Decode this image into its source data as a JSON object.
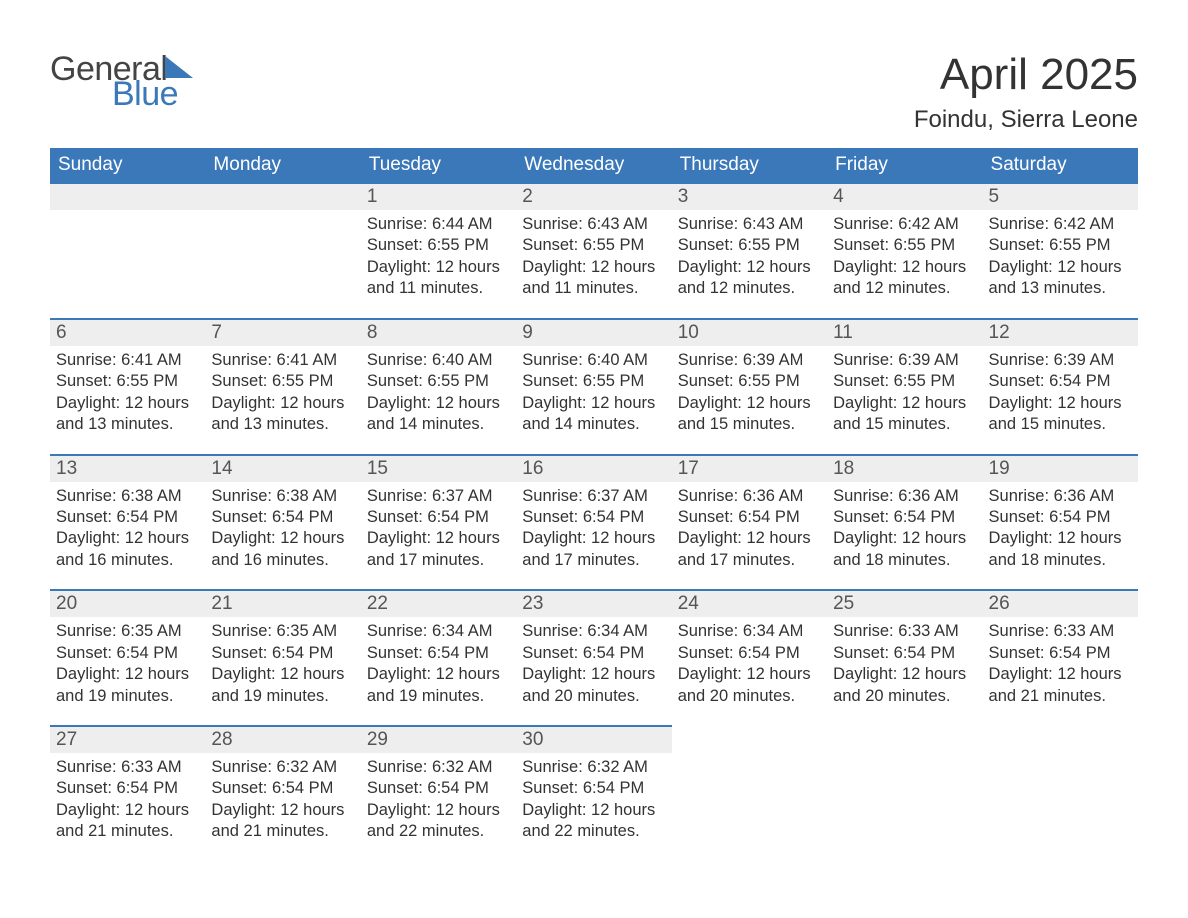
{
  "brand": {
    "word1": "General",
    "word2": "Blue"
  },
  "title": {
    "month": "April 2025",
    "location": "Foindu, Sierra Leone"
  },
  "colors": {
    "header_bg": "#3a78b9",
    "header_fg": "#ffffff",
    "daynum_bg": "#eeeeee",
    "daynum_border": "#3a78b9",
    "text": "#333333",
    "logo_gray": "#444444",
    "logo_blue": "#3a78b9",
    "page_bg": "#ffffff"
  },
  "day_headers": [
    "Sunday",
    "Monday",
    "Tuesday",
    "Wednesday",
    "Thursday",
    "Friday",
    "Saturday"
  ],
  "weeks": [
    [
      {
        "n": "",
        "sunrise": "",
        "sunset": "",
        "daylight": ""
      },
      {
        "n": "",
        "sunrise": "",
        "sunset": "",
        "daylight": ""
      },
      {
        "n": "1",
        "sunrise": "6:44 AM",
        "sunset": "6:55 PM",
        "daylight": "12 hours and 11 minutes."
      },
      {
        "n": "2",
        "sunrise": "6:43 AM",
        "sunset": "6:55 PM",
        "daylight": "12 hours and 11 minutes."
      },
      {
        "n": "3",
        "sunrise": "6:43 AM",
        "sunset": "6:55 PM",
        "daylight": "12 hours and 12 minutes."
      },
      {
        "n": "4",
        "sunrise": "6:42 AM",
        "sunset": "6:55 PM",
        "daylight": "12 hours and 12 minutes."
      },
      {
        "n": "5",
        "sunrise": "6:42 AM",
        "sunset": "6:55 PM",
        "daylight": "12 hours and 13 minutes."
      }
    ],
    [
      {
        "n": "6",
        "sunrise": "6:41 AM",
        "sunset": "6:55 PM",
        "daylight": "12 hours and 13 minutes."
      },
      {
        "n": "7",
        "sunrise": "6:41 AM",
        "sunset": "6:55 PM",
        "daylight": "12 hours and 13 minutes."
      },
      {
        "n": "8",
        "sunrise": "6:40 AM",
        "sunset": "6:55 PM",
        "daylight": "12 hours and 14 minutes."
      },
      {
        "n": "9",
        "sunrise": "6:40 AM",
        "sunset": "6:55 PM",
        "daylight": "12 hours and 14 minutes."
      },
      {
        "n": "10",
        "sunrise": "6:39 AM",
        "sunset": "6:55 PM",
        "daylight": "12 hours and 15 minutes."
      },
      {
        "n": "11",
        "sunrise": "6:39 AM",
        "sunset": "6:55 PM",
        "daylight": "12 hours and 15 minutes."
      },
      {
        "n": "12",
        "sunrise": "6:39 AM",
        "sunset": "6:54 PM",
        "daylight": "12 hours and 15 minutes."
      }
    ],
    [
      {
        "n": "13",
        "sunrise": "6:38 AM",
        "sunset": "6:54 PM",
        "daylight": "12 hours and 16 minutes."
      },
      {
        "n": "14",
        "sunrise": "6:38 AM",
        "sunset": "6:54 PM",
        "daylight": "12 hours and 16 minutes."
      },
      {
        "n": "15",
        "sunrise": "6:37 AM",
        "sunset": "6:54 PM",
        "daylight": "12 hours and 17 minutes."
      },
      {
        "n": "16",
        "sunrise": "6:37 AM",
        "sunset": "6:54 PM",
        "daylight": "12 hours and 17 minutes."
      },
      {
        "n": "17",
        "sunrise": "6:36 AM",
        "sunset": "6:54 PM",
        "daylight": "12 hours and 17 minutes."
      },
      {
        "n": "18",
        "sunrise": "6:36 AM",
        "sunset": "6:54 PM",
        "daylight": "12 hours and 18 minutes."
      },
      {
        "n": "19",
        "sunrise": "6:36 AM",
        "sunset": "6:54 PM",
        "daylight": "12 hours and 18 minutes."
      }
    ],
    [
      {
        "n": "20",
        "sunrise": "6:35 AM",
        "sunset": "6:54 PM",
        "daylight": "12 hours and 19 minutes."
      },
      {
        "n": "21",
        "sunrise": "6:35 AM",
        "sunset": "6:54 PM",
        "daylight": "12 hours and 19 minutes."
      },
      {
        "n": "22",
        "sunrise": "6:34 AM",
        "sunset": "6:54 PM",
        "daylight": "12 hours and 19 minutes."
      },
      {
        "n": "23",
        "sunrise": "6:34 AM",
        "sunset": "6:54 PM",
        "daylight": "12 hours and 20 minutes."
      },
      {
        "n": "24",
        "sunrise": "6:34 AM",
        "sunset": "6:54 PM",
        "daylight": "12 hours and 20 minutes."
      },
      {
        "n": "25",
        "sunrise": "6:33 AM",
        "sunset": "6:54 PM",
        "daylight": "12 hours and 20 minutes."
      },
      {
        "n": "26",
        "sunrise": "6:33 AM",
        "sunset": "6:54 PM",
        "daylight": "12 hours and 21 minutes."
      }
    ],
    [
      {
        "n": "27",
        "sunrise": "6:33 AM",
        "sunset": "6:54 PM",
        "daylight": "12 hours and 21 minutes."
      },
      {
        "n": "28",
        "sunrise": "6:32 AM",
        "sunset": "6:54 PM",
        "daylight": "12 hours and 21 minutes."
      },
      {
        "n": "29",
        "sunrise": "6:32 AM",
        "sunset": "6:54 PM",
        "daylight": "12 hours and 22 minutes."
      },
      {
        "n": "30",
        "sunrise": "6:32 AM",
        "sunset": "6:54 PM",
        "daylight": "12 hours and 22 minutes."
      },
      {
        "n": "",
        "sunrise": "",
        "sunset": "",
        "daylight": ""
      },
      {
        "n": "",
        "sunrise": "",
        "sunset": "",
        "daylight": ""
      },
      {
        "n": "",
        "sunrise": "",
        "sunset": "",
        "daylight": ""
      }
    ]
  ],
  "labels": {
    "sunrise": "Sunrise:",
    "sunset": "Sunset:",
    "daylight": "Daylight:"
  }
}
